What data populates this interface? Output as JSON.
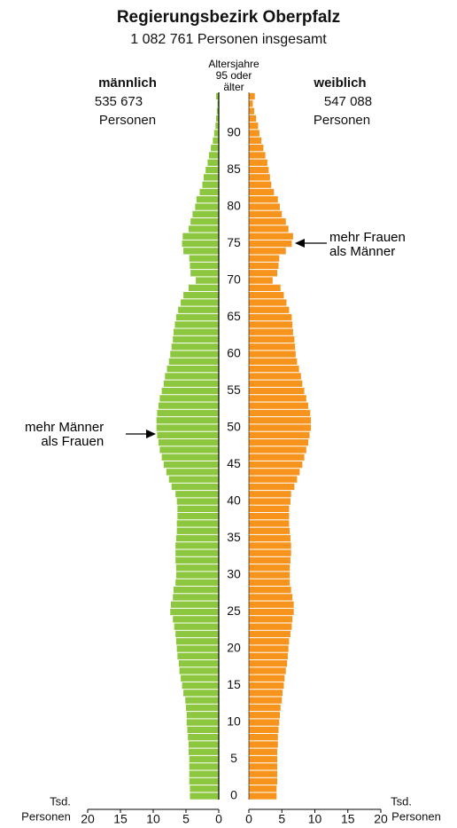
{
  "chart_data": {
    "type": "population-pyramid",
    "title": "Regierungsbezirk Oberpfalz",
    "subtitle": "1 082 761 Personen insgesamt",
    "age_label": "Altersjahre",
    "unit_label": "Personen",
    "x_unit": "Tsd.",
    "categories": [
      0,
      null,
      null,
      null,
      null,
      5,
      null,
      null,
      null,
      null,
      10,
      null,
      null,
      null,
      null,
      15,
      null,
      null,
      null,
      null,
      20,
      null,
      null,
      null,
      null,
      25,
      null,
      null,
      null,
      null,
      30,
      null,
      null,
      null,
      null,
      35,
      null,
      null,
      null,
      null,
      40,
      null,
      null,
      null,
      null,
      45,
      null,
      null,
      null,
      null,
      50,
      null,
      null,
      null,
      null,
      55,
      null,
      null,
      null,
      null,
      60,
      null,
      null,
      null,
      null,
      65,
      null,
      null,
      null,
      null,
      70,
      null,
      null,
      null,
      null,
      75,
      null,
      null,
      null,
      null,
      80,
      null,
      null,
      null,
      null,
      85,
      null,
      null,
      null,
      null,
      90,
      null,
      null,
      null,
      null,
      "95 oder älter"
    ],
    "xlim": [
      0,
      20
    ],
    "xticks": [
      0,
      5,
      10,
      15,
      20
    ],
    "series": [
      {
        "name": "männlich",
        "total_label": "535 673",
        "color": "#8dc63f",
        "values": [
          4.4,
          4.4,
          4.5,
          4.5,
          4.5,
          4.5,
          4.6,
          4.6,
          4.7,
          4.8,
          4.9,
          4.9,
          5.0,
          5.1,
          5.4,
          5.6,
          5.8,
          6.0,
          6.1,
          6.3,
          6.4,
          6.5,
          6.6,
          6.8,
          7.0,
          7.4,
          7.3,
          7.0,
          6.9,
          6.6,
          6.5,
          6.5,
          6.6,
          6.6,
          6.6,
          6.5,
          6.4,
          6.4,
          6.3,
          6.3,
          6.4,
          6.6,
          7.2,
          7.6,
          8.0,
          8.4,
          8.7,
          9.0,
          9.2,
          9.4,
          9.5,
          9.5,
          9.4,
          9.2,
          9.0,
          8.7,
          8.4,
          8.2,
          7.9,
          7.6,
          7.4,
          7.2,
          7.0,
          6.9,
          6.7,
          6.5,
          6.2,
          5.8,
          5.4,
          4.6,
          3.5,
          4.3,
          4.4,
          4.5,
          5.4,
          5.6,
          5.5,
          4.6,
          4.3,
          4.0,
          3.6,
          3.4,
          2.9,
          2.5,
          2.3,
          2.0,
          1.7,
          1.5,
          1.2,
          0.9,
          0.7,
          0.5,
          0.4,
          0.3,
          0.2,
          0.4
        ]
      },
      {
        "name": "weiblich",
        "total_label": "547 088",
        "color": "#f7941d",
        "values": [
          4.2,
          4.2,
          4.3,
          4.3,
          4.3,
          4.3,
          4.3,
          4.4,
          4.4,
          4.5,
          4.6,
          4.7,
          4.8,
          5.0,
          5.1,
          5.3,
          5.4,
          5.6,
          5.8,
          5.9,
          6.0,
          6.1,
          6.3,
          6.5,
          6.6,
          6.8,
          6.8,
          6.6,
          6.4,
          6.2,
          6.2,
          6.2,
          6.3,
          6.4,
          6.4,
          6.3,
          6.2,
          6.1,
          6.1,
          6.1,
          6.3,
          6.4,
          6.9,
          7.3,
          7.7,
          8.1,
          8.4,
          8.7,
          9.0,
          9.2,
          9.4,
          9.4,
          9.3,
          9.0,
          8.7,
          8.4,
          8.1,
          7.9,
          7.6,
          7.3,
          7.1,
          7.0,
          6.9,
          6.7,
          6.6,
          6.5,
          6.1,
          5.7,
          5.3,
          4.8,
          3.6,
          4.3,
          4.5,
          4.6,
          5.6,
          6.5,
          6.7,
          6.0,
          5.6,
          5.0,
          4.7,
          4.4,
          3.8,
          3.4,
          3.2,
          3.0,
          2.8,
          2.5,
          2.2,
          1.9,
          1.6,
          1.4,
          1.1,
          0.8,
          0.6,
          0.9
        ]
      }
    ],
    "annotations": [
      {
        "lines": [
          "mehr Männer",
          "als Frauen"
        ]
      },
      {
        "lines": [
          "mehr Frauen",
          "als Männer"
        ]
      }
    ]
  }
}
